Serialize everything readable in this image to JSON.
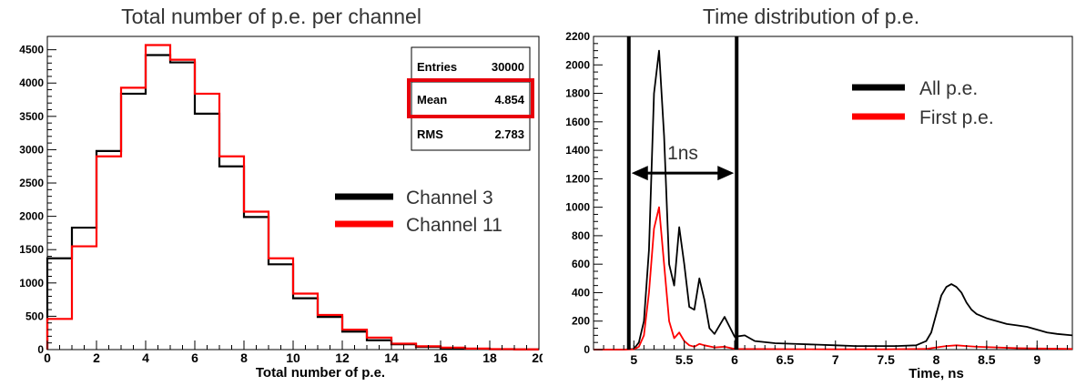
{
  "chart_data": [
    {
      "type": "bar",
      "title": "Total number of p.e. per channel",
      "xlabel": "Total number of p.e.",
      "ylabel": "",
      "xlim": [
        0,
        20
      ],
      "ylim": [
        0,
        4700
      ],
      "x_ticks": [
        "0",
        "2",
        "4",
        "6",
        "8",
        "10",
        "12",
        "14",
        "16",
        "18",
        "20"
      ],
      "y_ticks": [
        "0",
        "500",
        "1000",
        "1500",
        "2000",
        "2500",
        "3000",
        "3500",
        "4000",
        "4500"
      ],
      "bin_edges": [
        0,
        1,
        2,
        3,
        4,
        5,
        6,
        7,
        8,
        9,
        10,
        11,
        12,
        13,
        14,
        15,
        16,
        17,
        18,
        19,
        20
      ],
      "series": [
        {
          "name": "Channel 3",
          "color": "#000000",
          "values": [
            1370,
            1830,
            2980,
            3840,
            4420,
            4310,
            3540,
            2750,
            1990,
            1280,
            770,
            490,
            270,
            140,
            80,
            40,
            20,
            10,
            5,
            2
          ]
        },
        {
          "name": "Channel 11",
          "color": "#ff0000",
          "values": [
            460,
            1550,
            2900,
            3930,
            4570,
            4350,
            3840,
            2900,
            2070,
            1370,
            840,
            520,
            300,
            180,
            90,
            50,
            30,
            15,
            8,
            3
          ]
        }
      ],
      "stats": {
        "entries_label": "Entries",
        "entries_value": "30000",
        "mean_label": "Mean",
        "mean_value": "4.854",
        "rms_label": "RMS",
        "rms_value": "2.783"
      },
      "highlight_color": "#e8000b",
      "legend_placement": "right",
      "grid": false
    },
    {
      "type": "line",
      "title": "Time distribution of p.e.",
      "xlabel": "Time, ns",
      "ylabel": "",
      "xlim": [
        4.6,
        9.35
      ],
      "ylim": [
        0,
        2200
      ],
      "x_ticks": [
        "5",
        "5.5",
        "6",
        "6.5",
        "7",
        "7.5",
        "8",
        "8.5",
        "9"
      ],
      "y_ticks": [
        "0",
        "200",
        "400",
        "600",
        "800",
        "1000",
        "1200",
        "1400",
        "1600",
        "1800",
        "2000",
        "2200"
      ],
      "series": [
        {
          "name": "All p.e.",
          "color": "#000000",
          "x": [
            4.6,
            4.9,
            5.0,
            5.05,
            5.1,
            5.15,
            5.2,
            5.25,
            5.3,
            5.35,
            5.4,
            5.45,
            5.5,
            5.55,
            5.6,
            5.65,
            5.7,
            5.75,
            5.8,
            5.85,
            5.9,
            5.95,
            6.0,
            6.1,
            6.2,
            6.4,
            6.6,
            6.8,
            7.0,
            7.2,
            7.4,
            7.6,
            7.8,
            7.9,
            7.95,
            8.0,
            8.05,
            8.1,
            8.15,
            8.2,
            8.25,
            8.3,
            8.35,
            8.4,
            8.5,
            8.6,
            8.7,
            8.8,
            8.9,
            9.0,
            9.1,
            9.2,
            9.35
          ],
          "y": [
            0,
            0,
            5,
            50,
            200,
            700,
            1800,
            2100,
            1500,
            600,
            450,
            860,
            600,
            300,
            280,
            500,
            350,
            150,
            110,
            170,
            230,
            160,
            90,
            100,
            60,
            45,
            40,
            35,
            30,
            25,
            25,
            25,
            30,
            60,
            120,
            250,
            380,
            440,
            460,
            440,
            400,
            330,
            280,
            250,
            220,
            200,
            180,
            170,
            160,
            140,
            120,
            110,
            100
          ]
        },
        {
          "name": "First p.e.",
          "color": "#ff0000",
          "x": [
            4.6,
            4.9,
            5.0,
            5.05,
            5.1,
            5.15,
            5.2,
            5.25,
            5.3,
            5.35,
            5.4,
            5.45,
            5.5,
            5.55,
            5.6,
            5.65,
            5.7,
            5.8,
            5.9,
            6.0,
            6.5,
            7.0,
            7.5,
            7.9,
            8.0,
            8.1,
            8.2,
            8.3,
            8.4,
            8.6,
            8.8,
            9.0,
            9.35
          ],
          "y": [
            0,
            0,
            2,
            20,
            100,
            400,
            850,
            1000,
            600,
            200,
            80,
            120,
            60,
            30,
            20,
            40,
            30,
            15,
            20,
            5,
            3,
            2,
            2,
            5,
            15,
            25,
            30,
            25,
            20,
            15,
            10,
            8,
            5
          ]
        }
      ],
      "markers": [
        4.95,
        6.02
      ],
      "annotation": {
        "label": "1ns",
        "from": 4.95,
        "to": 6.02,
        "y": 1240
      },
      "legend_placement": "top-right",
      "grid": false
    }
  ]
}
